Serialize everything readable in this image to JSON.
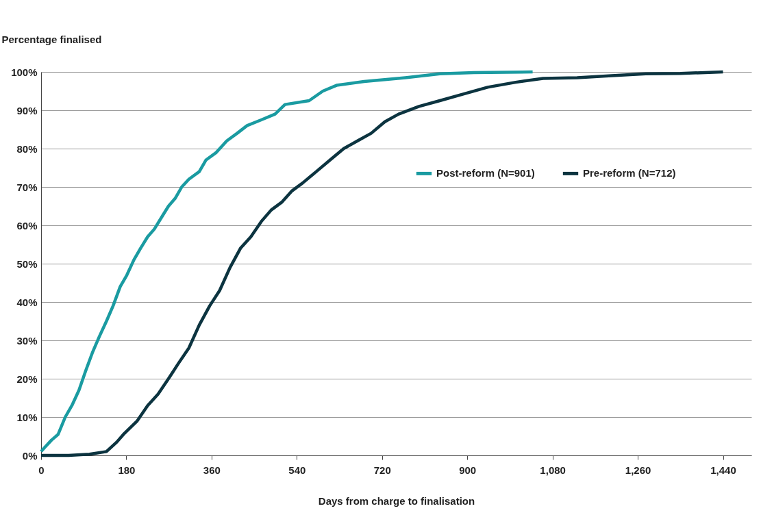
{
  "chart_data": {
    "type": "line",
    "ylabel": "Percentage finalised",
    "xlabel": "Days from charge to finalisation",
    "xlim": [
      0,
      1500
    ],
    "xticks": [
      0,
      180,
      360,
      540,
      720,
      900,
      {
        "value": 1080,
        "label": "1,080"
      },
      {
        "value": 1260,
        "label": "1,260"
      },
      {
        "value": 1440,
        "label": "1,440"
      }
    ],
    "ylim": [
      0,
      100
    ],
    "yticks": [
      {
        "value": 0,
        "label": "0%"
      },
      {
        "value": 10,
        "label": "10%"
      },
      {
        "value": 20,
        "label": "20%"
      },
      {
        "value": 30,
        "label": "30%"
      },
      {
        "value": 40,
        "label": "40%"
      },
      {
        "value": 50,
        "label": "50%"
      },
      {
        "value": 60,
        "label": "60%"
      },
      {
        "value": 70,
        "label": "70%"
      },
      {
        "value": 80,
        "label": "80%"
      },
      {
        "value": 90,
        "label": "90%"
      },
      {
        "value": 100,
        "label": "100%"
      }
    ],
    "grid": "y",
    "legend": "right",
    "line_style": "solid",
    "marker": "none",
    "series": [
      {
        "name": "Post-reform (N=901)",
        "color": "#1a9ba1",
        "x": [
          0,
          7,
          22,
          36,
          51,
          65,
          80,
          94,
          109,
          123,
          138,
          152,
          167,
          181,
          196,
          210,
          225,
          239,
          254,
          269,
          283,
          297,
          312,
          334,
          348,
          370,
          392,
          414,
          435,
          465,
          494,
          515,
          566,
          595,
          624,
          682,
          769,
          842,
          914,
          1038
        ],
        "values": [
          1,
          2,
          4,
          5.5,
          10,
          13,
          17,
          22,
          27,
          31,
          35,
          39,
          44,
          47,
          51,
          54,
          57,
          59,
          62,
          65,
          67,
          70,
          72,
          74,
          77,
          79,
          82,
          84,
          86,
          87.5,
          89,
          91.5,
          92.5,
          95,
          96.5,
          97.5,
          98.5,
          99.5,
          99.8,
          100
        ]
      },
      {
        "name": "Pre-reform (N=712)",
        "color": "#0c3440",
        "x": [
          0,
          58,
          102,
          138,
          160,
          174,
          203,
          225,
          247,
          269,
          290,
          312,
          334,
          356,
          377,
          399,
          421,
          443,
          465,
          486,
          508,
          530,
          552,
          581,
          610,
          639,
          668,
          697,
          726,
          755,
          798,
          842,
          885,
          943,
          1002,
          1060,
          1132,
          1205,
          1277,
          1350,
          1440
        ],
        "values": [
          0,
          0,
          0.3,
          1,
          3.5,
          5.5,
          9,
          13,
          16,
          20,
          24,
          28,
          34,
          39,
          43,
          49,
          54,
          57,
          61,
          64,
          66,
          69,
          71,
          74,
          77,
          80,
          82,
          84,
          87,
          89,
          91,
          92.5,
          94,
          96,
          97.3,
          98.3,
          98.5,
          99,
          99.5,
          99.6,
          100
        ]
      }
    ]
  }
}
